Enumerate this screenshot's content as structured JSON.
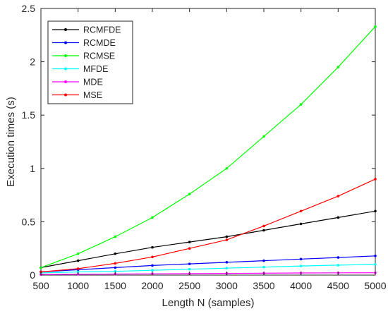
{
  "chart_data": {
    "type": "line",
    "title": "",
    "xlabel": "Length N (samples)",
    "ylabel": "Execution times (s)",
    "xlim": [
      500,
      5000
    ],
    "ylim": [
      0,
      2.5
    ],
    "xticks": [
      500,
      1000,
      1500,
      2000,
      2500,
      3000,
      3500,
      4000,
      4500,
      5000
    ],
    "yticks": [
      0,
      0.5,
      1,
      1.5,
      2,
      2.5
    ],
    "ytick_labels": [
      "0",
      "0.5",
      "1",
      "1.5",
      "2",
      "2.5"
    ],
    "grid": false,
    "legend_position": "top-left",
    "x": [
      500,
      1000,
      1500,
      2000,
      2500,
      3000,
      3500,
      4000,
      4500,
      5000
    ],
    "series": [
      {
        "name": "RCMFDE",
        "color": "#000000",
        "values": [
          0.07,
          0.135,
          0.2,
          0.26,
          0.31,
          0.36,
          0.42,
          0.48,
          0.54,
          0.6
        ]
      },
      {
        "name": "RCMDE",
        "color": "#0000ff",
        "values": [
          0.03,
          0.05,
          0.07,
          0.09,
          0.105,
          0.12,
          0.135,
          0.15,
          0.165,
          0.18
        ]
      },
      {
        "name": "RCMSE",
        "color": "#00ff00",
        "values": [
          0.07,
          0.2,
          0.36,
          0.54,
          0.76,
          1.0,
          1.3,
          1.6,
          1.95,
          2.33
        ]
      },
      {
        "name": "MFDE",
        "color": "#00ffff",
        "values": [
          0.02,
          0.03,
          0.035,
          0.045,
          0.055,
          0.065,
          0.075,
          0.085,
          0.093,
          0.1
        ]
      },
      {
        "name": "MDE",
        "color": "#ff00ff",
        "values": [
          0.005,
          0.008,
          0.01,
          0.012,
          0.014,
          0.016,
          0.018,
          0.02,
          0.021,
          0.022
        ]
      },
      {
        "name": "MSE",
        "color": "#ff0000",
        "values": [
          0.03,
          0.06,
          0.11,
          0.17,
          0.25,
          0.33,
          0.46,
          0.6,
          0.74,
          0.9
        ]
      }
    ]
  }
}
